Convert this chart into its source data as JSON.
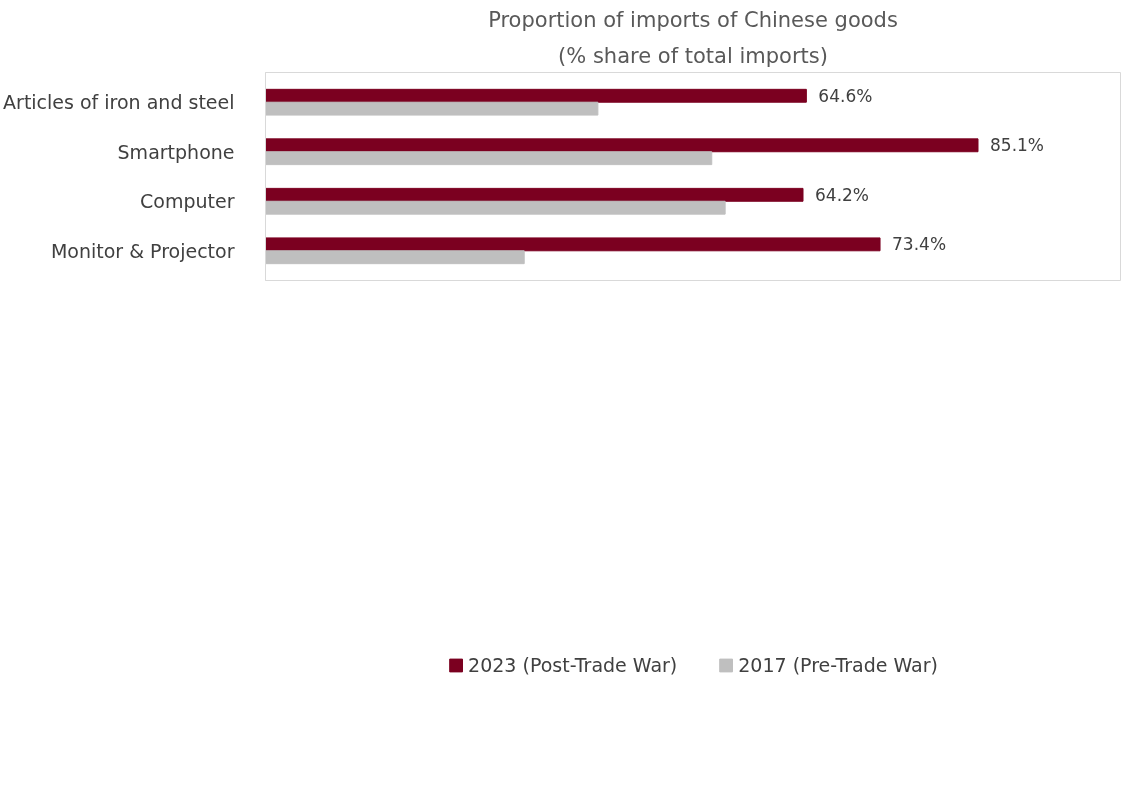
{
  "chart_data": {
    "type": "bar",
    "orientation": "horizontal",
    "title": "Proportion of imports of Chinese goods",
    "subtitle": "(% share of total imports)",
    "categories": [
      "Articles of iron and steel",
      "Smartphone",
      "Computer",
      "Monitor & Projector"
    ],
    "series": [
      {
        "name": "2023 (Post-Trade War)",
        "color": "#7b0020",
        "values": [
          64.6,
          85.1,
          64.2,
          73.4
        ],
        "value_labels": [
          "64.6%",
          "85.1%",
          "64.2%",
          "73.4%"
        ]
      },
      {
        "name": "2017 (Pre-Trade War)",
        "color": "#bfbfbf",
        "values": [
          39.7,
          53.3,
          54.9,
          30.9
        ],
        "value_labels": [
          null,
          null,
          null,
          null
        ]
      }
    ],
    "legend": "bottom",
    "grid": false
  }
}
